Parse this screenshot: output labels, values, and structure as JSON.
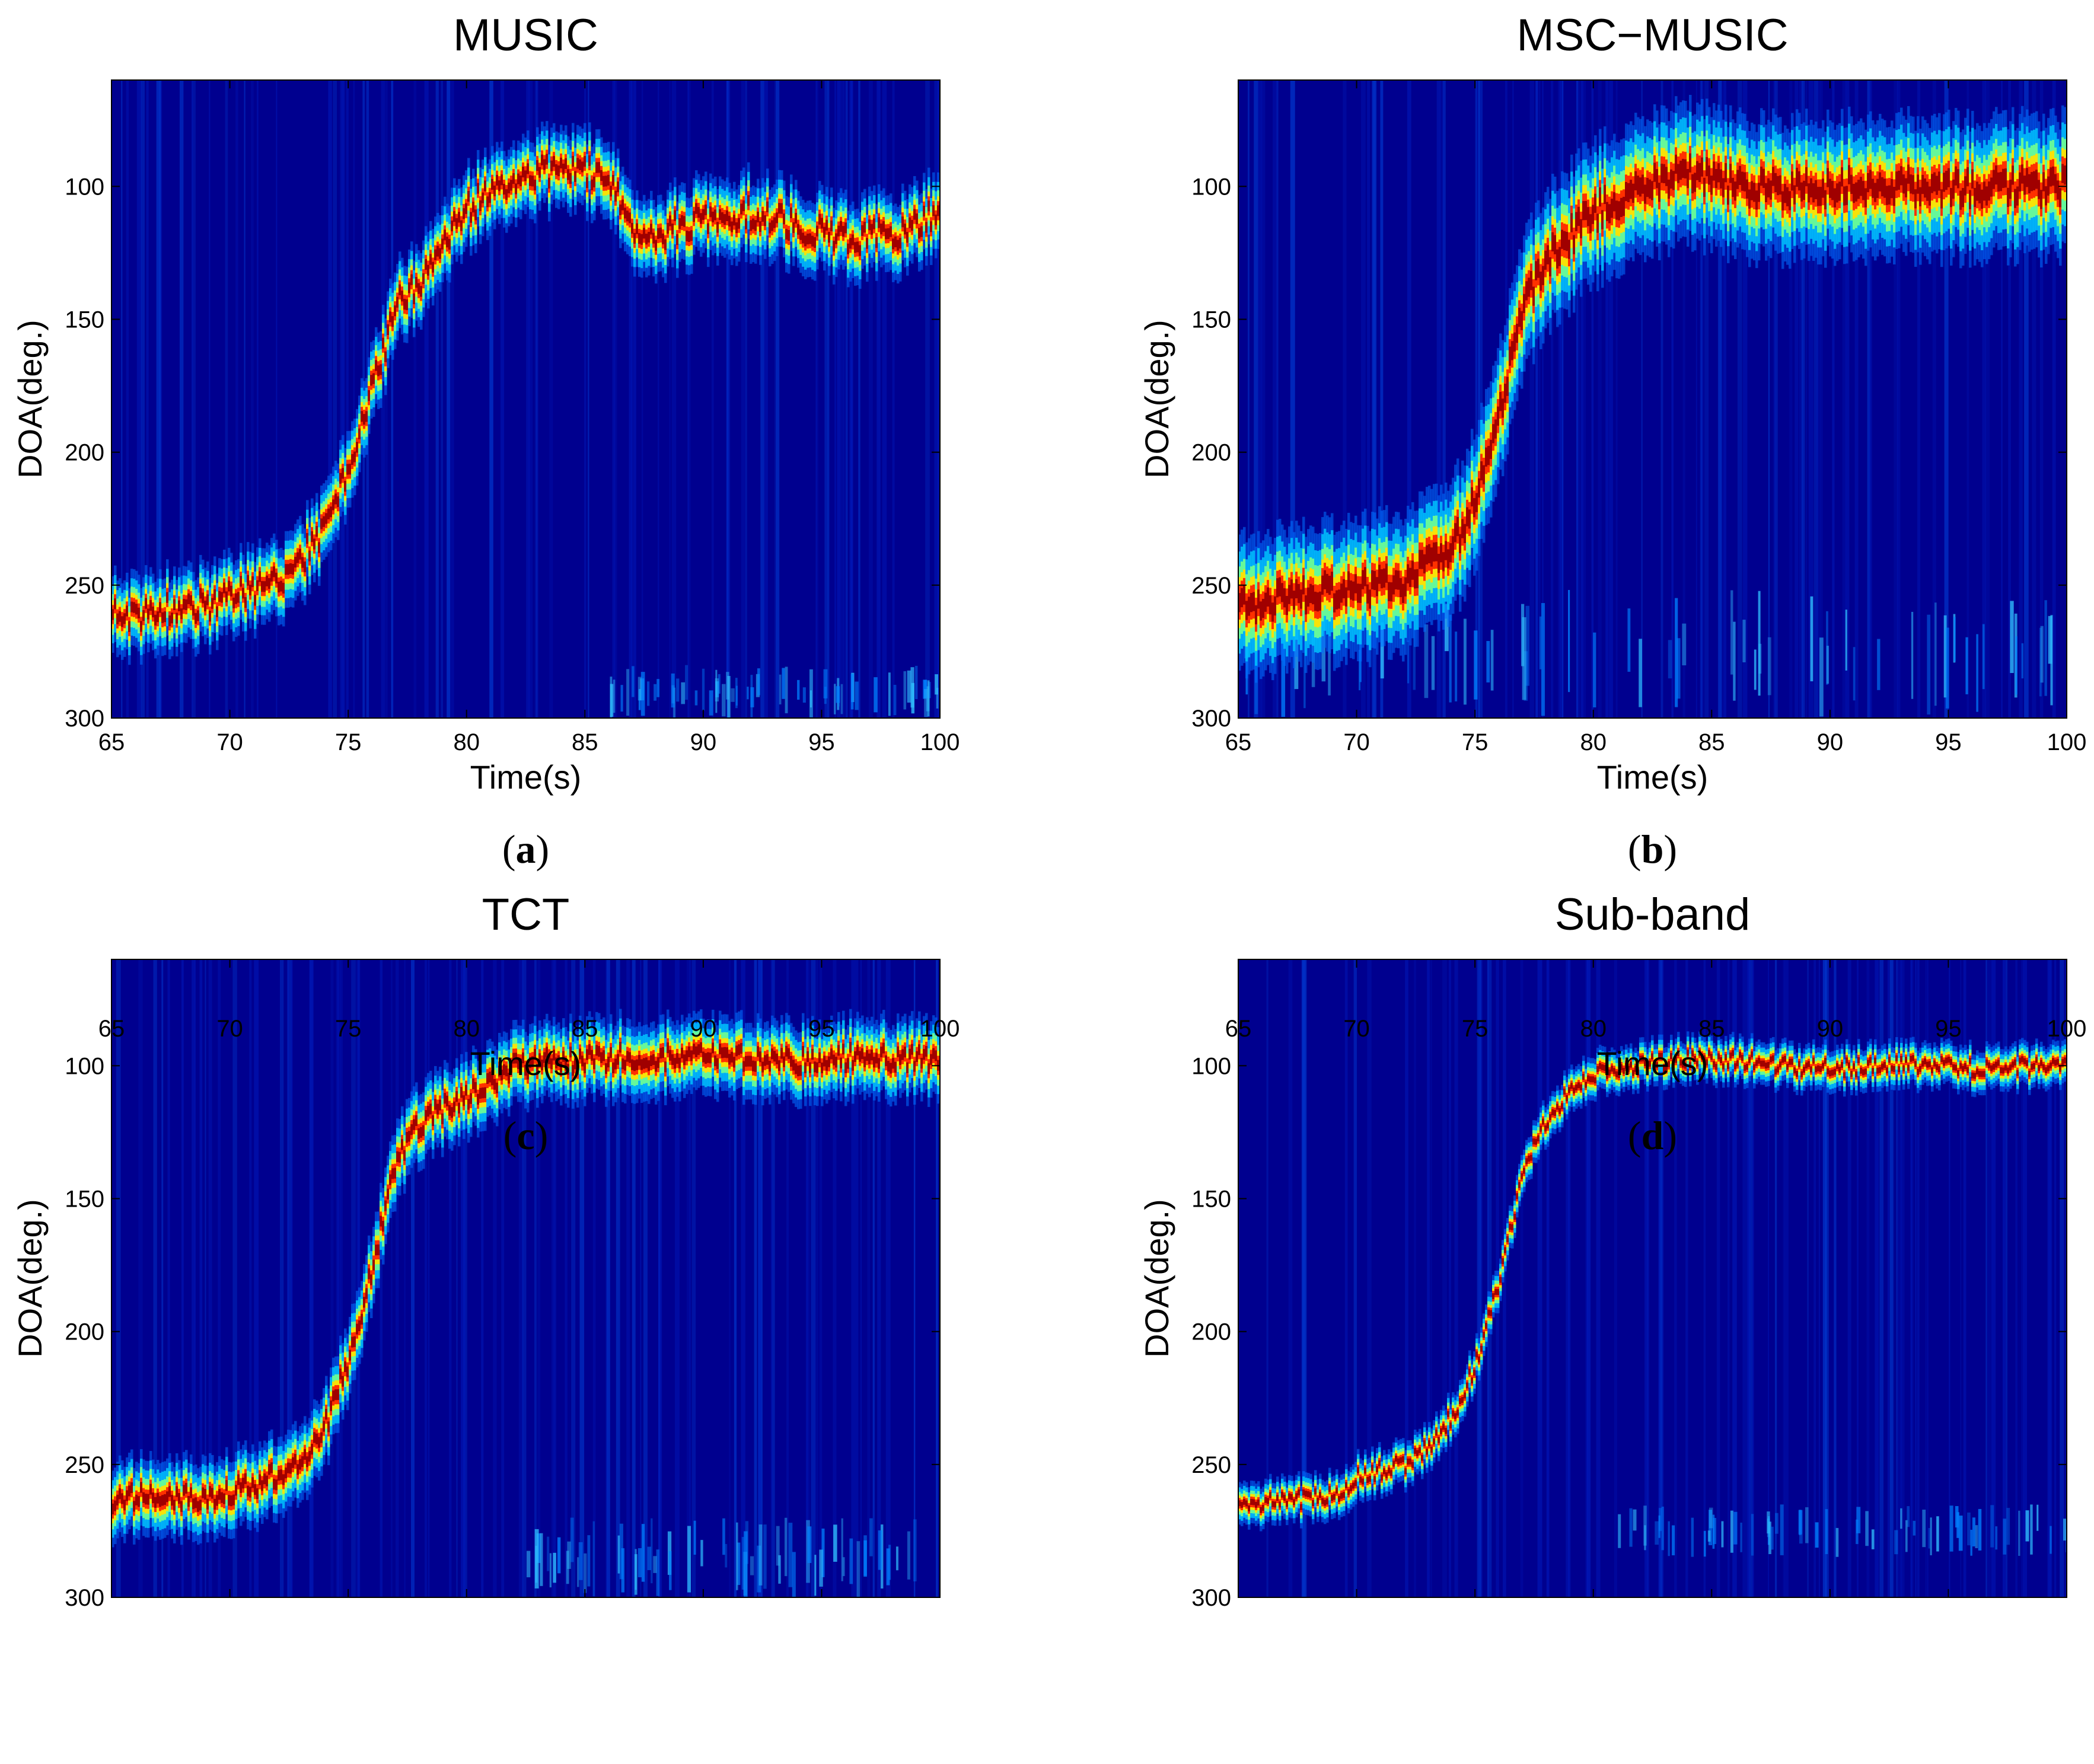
{
  "figure": {
    "panels": [
      {
        "caption_open": "(",
        "caption_letter": "a",
        "caption_close": ")"
      },
      {
        "caption_open": "(",
        "caption_letter": "b",
        "caption_close": ")"
      },
      {
        "caption_open": "(",
        "caption_letter": "c",
        "caption_close": ")"
      },
      {
        "caption_open": "(",
        "caption_letter": "d",
        "caption_close": ")"
      }
    ]
  },
  "chart_data": [
    {
      "type": "heatmap",
      "title": "MUSIC",
      "xlabel": "Time(s)",
      "ylabel": "DOA(deg.)",
      "xlim": [
        65,
        100
      ],
      "ylim": [
        60,
        300
      ],
      "y_axis_reversed": true,
      "xticks": [
        65,
        70,
        75,
        80,
        85,
        90,
        95,
        100
      ],
      "yticks": [
        100,
        150,
        200,
        250,
        300
      ],
      "colormap": "jet",
      "background_color": "#00008f",
      "peak_color": "#a00000",
      "peak_track": {
        "time": [
          65,
          67,
          69,
          71,
          72,
          73,
          74,
          75,
          76,
          77,
          78,
          79,
          80,
          81,
          82,
          83,
          84,
          85,
          86,
          87,
          88,
          90,
          92,
          94,
          96,
          98,
          100
        ],
        "doa": [
          262,
          260,
          257,
          252,
          248,
          240,
          228,
          205,
          175,
          145,
          135,
          122,
          108,
          102,
          98,
          95,
          93,
          94,
          100,
          115,
          118,
          112,
          110,
          115,
          120,
          118,
          110
        ]
      },
      "peak_width_deg": 9,
      "spread_deg": 5,
      "noise_band_doa": [
        280,
        300
      ],
      "noise_band_time": [
        86,
        100
      ]
    },
    {
      "type": "heatmap",
      "title": "MSC−MUSIC",
      "xlabel": "Time(s)",
      "ylabel": "DOA(deg.)",
      "xlim": [
        65,
        100
      ],
      "ylim": [
        60,
        300
      ],
      "y_axis_reversed": true,
      "xticks": [
        65,
        70,
        75,
        80,
        85,
        90,
        95,
        100
      ],
      "yticks": [
        100,
        150,
        200,
        250,
        300
      ],
      "colormap": "jet",
      "background_color": "#00008f",
      "peak_color": "#a00000",
      "peak_track": {
        "time": [
          65,
          67,
          69,
          71,
          72,
          73,
          74,
          75,
          76,
          77,
          78,
          79,
          80,
          82,
          84,
          86,
          88,
          90,
          92,
          94,
          96,
          98,
          100
        ],
        "doa": [
          258,
          255,
          252,
          250,
          248,
          243,
          235,
          218,
          185,
          145,
          128,
          118,
          110,
          100,
          95,
          100,
          101,
          100,
          100,
          100,
          101,
          100,
          100
        ]
      },
      "peak_width_deg": 16,
      "spread_deg": 5,
      "noise_band_doa": [
        250,
        300
      ],
      "noise_band_time": [
        65,
        100
      ]
    },
    {
      "type": "heatmap",
      "title": "TCT",
      "xlabel": "Time(s)",
      "ylabel": "DOA(deg.)",
      "xlim": [
        65,
        100
      ],
      "ylim": [
        60,
        300
      ],
      "y_axis_reversed": true,
      "xticks": [
        65,
        70,
        75,
        80,
        85,
        90,
        95,
        100
      ],
      "yticks": [
        100,
        150,
        200,
        250,
        300
      ],
      "colormap": "jet",
      "background_color": "#00008f",
      "peak_color": "#a00000",
      "peak_track": {
        "time": [
          65,
          67,
          69,
          71,
          72,
          73,
          74,
          75,
          76,
          77,
          78,
          79,
          80,
          81,
          82,
          84,
          86,
          88,
          90,
          92,
          94,
          96,
          98,
          100
        ],
        "doa": [
          263,
          262,
          262,
          258,
          254,
          248,
          235,
          210,
          175,
          135,
          122,
          116,
          112,
          106,
          100,
          98,
          97,
          97,
          97,
          97,
          98,
          97,
          97,
          98
        ]
      },
      "peak_width_deg": 9,
      "spread_deg": 4,
      "noise_band_doa": [
        270,
        300
      ],
      "noise_band_time": [
        82,
        100
      ]
    },
    {
      "type": "heatmap",
      "title": "Sub-band",
      "xlabel": "Time(s)",
      "ylabel": "DOA(deg.)",
      "xlim": [
        65,
        100
      ],
      "ylim": [
        60,
        300
      ],
      "y_axis_reversed": true,
      "xticks": [
        65,
        70,
        75,
        80,
        85,
        90,
        95,
        100
      ],
      "yticks": [
        100,
        150,
        200,
        250,
        300
      ],
      "colormap": "jet",
      "background_color": "#00008f",
      "peak_color": "#a00000",
      "peak_track": {
        "time": [
          65,
          67,
          69,
          70,
          71,
          72,
          73,
          74,
          75,
          76,
          77,
          78,
          79,
          80,
          82,
          84,
          86,
          88,
          90,
          92,
          94,
          96,
          98,
          100
        ],
        "doa": [
          265,
          264,
          262,
          255,
          252,
          250,
          243,
          232,
          212,
          180,
          140,
          120,
          110,
          103,
          100,
          97,
          98,
          100,
          101,
          100,
          100,
          101,
          100,
          101
        ]
      },
      "peak_width_deg": 5,
      "spread_deg": 3,
      "noise_band_doa": [
        265,
        285
      ],
      "noise_band_time": [
        80,
        100
      ]
    }
  ]
}
